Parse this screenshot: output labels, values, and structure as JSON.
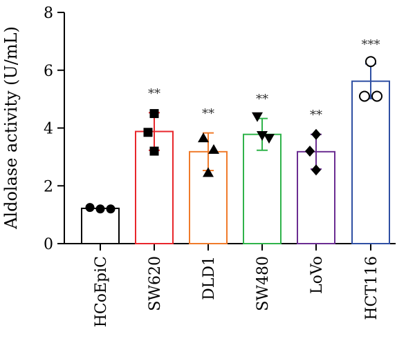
{
  "chart_data": {
    "type": "bar",
    "ylabel": "Aldolase activity (U/mL)",
    "xlabel": "",
    "ylim": [
      0,
      8
    ],
    "yticks": [
      0,
      2,
      4,
      6,
      8
    ],
    "grid": false,
    "categories": [
      "HCoEpiC",
      "SW620",
      "DLD1",
      "SW480",
      "LoVo",
      "HCT116"
    ],
    "values": [
      1.22,
      3.88,
      3.18,
      3.78,
      3.18,
      5.62
    ],
    "errors": [
      0.0,
      0.65,
      0.65,
      0.55,
      0.6,
      0.6
    ],
    "significance": [
      "",
      "**",
      "**",
      "**",
      "**",
      "***"
    ],
    "colors": [
      "#000000",
      "#e8262b",
      "#f07a2a",
      "#2fb34a",
      "#6a2c91",
      "#2e4fa3"
    ],
    "markers": [
      "circle",
      "square",
      "triangle-up",
      "triangle-down",
      "diamond",
      "circle-open"
    ],
    "points": [
      [
        1.25,
        1.2,
        1.2
      ],
      [
        4.5,
        3.85,
        3.2
      ],
      [
        3.65,
        3.25,
        2.45
      ],
      [
        4.4,
        3.75,
        3.65
      ],
      [
        3.78,
        3.2,
        2.55
      ],
      [
        6.3,
        5.1,
        5.1
      ]
    ]
  }
}
